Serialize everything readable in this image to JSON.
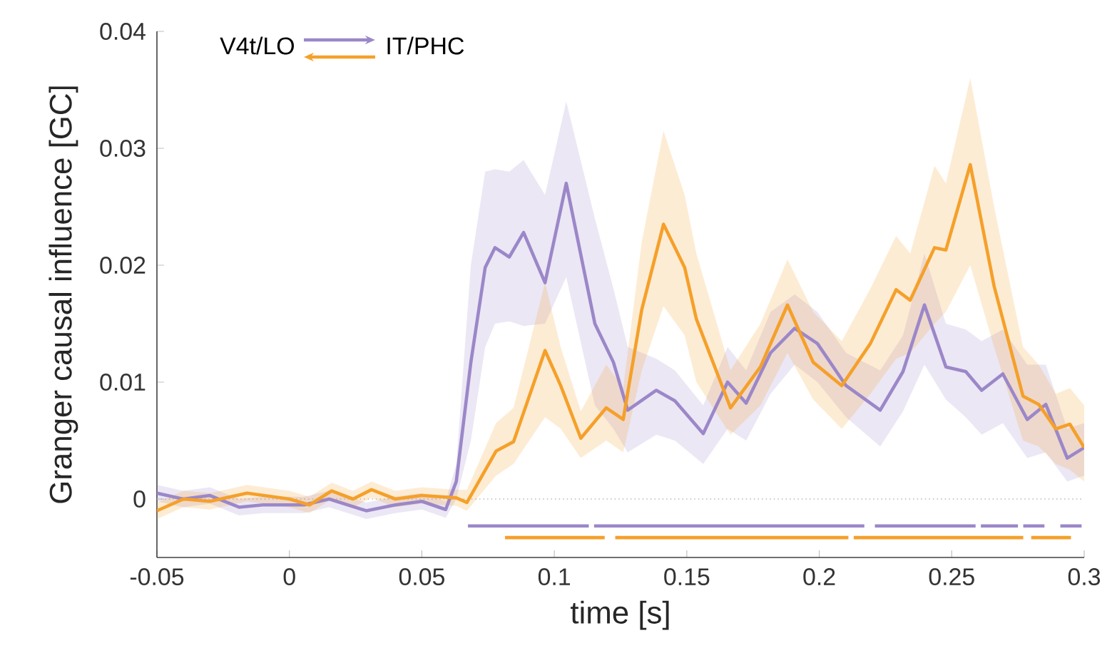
{
  "chart_data": {
    "type": "line",
    "xlabel": "time [s]",
    "ylabel": "Granger causal influence [GC]",
    "annotations": [
      "V4t/LO",
      "IT/PHC"
    ],
    "xlim": [
      -0.05,
      0.3
    ],
    "ylim": [
      -0.005,
      0.04
    ],
    "xticks": [
      -0.05,
      0,
      0.05,
      0.1,
      0.15,
      0.2,
      0.25,
      0.3
    ],
    "yticks": [
      0,
      0.01,
      0.02,
      0.03,
      0.04
    ],
    "ref_lines": [
      {
        "axis": "y",
        "value": 0,
        "color": "#bbbbbb",
        "line_style": "dotted"
      }
    ],
    "series": [
      {
        "color": "#9b87c8",
        "x": [
          -0.05,
          -0.04,
          -0.03,
          -0.019,
          -0.01,
          0.0055,
          0.015,
          0.029,
          0.04,
          0.05,
          0.059,
          0.063,
          0.0685,
          0.0739,
          0.0776,
          0.083,
          0.0884,
          0.0965,
          0.1045,
          0.1153,
          0.1223,
          0.1277,
          0.1385,
          0.1455,
          0.1562,
          0.1654,
          0.1724,
          0.1816,
          0.1907,
          0.1993,
          0.2101,
          0.223,
          0.2316,
          0.2397,
          0.2478,
          0.2553,
          0.2613,
          0.2693,
          0.2785,
          0.2855,
          0.2936,
          0.3
        ],
        "values": [
          0.0005,
          0.0,
          0.0003,
          -0.0007,
          -0.0005,
          -0.0005,
          0.0,
          -0.001,
          -0.0005,
          -0.0002,
          -0.0009,
          0.0015,
          0.0117,
          0.0198,
          0.0215,
          0.0207,
          0.0228,
          0.0185,
          0.027,
          0.015,
          0.0117,
          0.0076,
          0.0093,
          0.0084,
          0.0056,
          0.01,
          0.0082,
          0.0125,
          0.0146,
          0.0133,
          0.0097,
          0.0076,
          0.0109,
          0.0166,
          0.0113,
          0.0109,
          0.0093,
          0.0107,
          0.0068,
          0.0081,
          0.0035,
          0.0044
        ],
        "upper": [
          0.0012,
          0.0007,
          0.001,
          0.0,
          0.0002,
          0.0002,
          0.0007,
          -0.0003,
          0.0002,
          0.0005,
          -0.0002,
          0.003,
          0.02,
          0.028,
          0.0282,
          0.028,
          0.029,
          0.026,
          0.034,
          0.024,
          0.018,
          0.013,
          0.012,
          0.011,
          0.008,
          0.013,
          0.011,
          0.016,
          0.0175,
          0.016,
          0.0125,
          0.011,
          0.014,
          0.021,
          0.015,
          0.0145,
          0.0135,
          0.0145,
          0.0115,
          0.0115,
          0.006,
          0.0065
        ],
        "lower": [
          -0.0002,
          -0.0007,
          -0.0004,
          -0.0014,
          -0.0012,
          -0.0012,
          -0.0007,
          -0.0017,
          -0.0012,
          -0.0009,
          -0.0016,
          0.0,
          0.005,
          0.013,
          0.015,
          0.0152,
          0.0148,
          0.015,
          0.019,
          0.008,
          0.006,
          0.004,
          0.0055,
          0.005,
          0.003,
          0.006,
          0.005,
          0.009,
          0.0115,
          0.01,
          0.007,
          0.0045,
          0.0075,
          0.0115,
          0.0085,
          0.007,
          0.0055,
          0.0065,
          0.0035,
          0.004,
          0.0015,
          0.002
        ]
      },
      {
        "color": "#f5a02a",
        "x": [
          -0.05,
          -0.04,
          -0.03,
          -0.016,
          0.0,
          0.0076,
          0.016,
          0.024,
          0.031,
          0.04,
          0.05,
          0.063,
          0.067,
          0.078,
          0.0846,
          0.0965,
          0.1024,
          0.11,
          0.1196,
          0.126,
          0.133,
          0.1412,
          0.1492,
          0.1536,
          0.1665,
          0.1778,
          0.188,
          0.1977,
          0.2085,
          0.2193,
          0.229,
          0.2343,
          0.2435,
          0.2478,
          0.257,
          0.266,
          0.2769,
          0.2828,
          0.2893,
          0.2946,
          0.3
        ],
        "values": [
          -0.001,
          0.0,
          -0.0002,
          0.0005,
          0.0,
          -0.0005,
          0.0007,
          0.0,
          0.0008,
          0.0,
          0.0003,
          0.0001,
          -0.0003,
          0.0041,
          0.0049,
          0.0127,
          0.0097,
          0.0052,
          0.0078,
          0.0068,
          0.0162,
          0.0235,
          0.0198,
          0.0154,
          0.0078,
          0.0113,
          0.0166,
          0.0117,
          0.0097,
          0.0133,
          0.0179,
          0.017,
          0.0215,
          0.0213,
          0.0286,
          0.0182,
          0.0088,
          0.0081,
          0.006,
          0.0064,
          0.0044
        ],
        "upper": [
          -0.0003,
          0.0007,
          0.0005,
          0.0012,
          0.0007,
          0.0002,
          0.0014,
          0.0007,
          0.0015,
          0.0007,
          0.001,
          0.0008,
          0.0008,
          0.0065,
          0.0078,
          0.0185,
          0.013,
          0.0075,
          0.0115,
          0.0095,
          0.022,
          0.0315,
          0.026,
          0.021,
          0.011,
          0.015,
          0.0205,
          0.016,
          0.0135,
          0.018,
          0.0225,
          0.021,
          0.0285,
          0.027,
          0.036,
          0.025,
          0.013,
          0.0115,
          0.009,
          0.0095,
          0.008
        ],
        "lower": [
          -0.0017,
          -0.0007,
          -0.0009,
          -0.0002,
          -0.0007,
          -0.0012,
          0.0,
          -0.0007,
          0.0001,
          -0.0007,
          -0.0004,
          -0.0006,
          -0.001,
          0.002,
          0.003,
          0.007,
          0.006,
          0.0035,
          0.005,
          0.004,
          0.011,
          0.0165,
          0.014,
          0.01,
          0.0055,
          0.008,
          0.0125,
          0.0085,
          0.006,
          0.009,
          0.012,
          0.0125,
          0.015,
          0.016,
          0.02,
          0.013,
          0.005,
          0.0045,
          0.003,
          0.0025,
          0.0015
        ]
      },
      {
        "color": "#9b87c8",
        "x": [
          0.0674,
          0.113,
          null,
          0.115,
          0.217,
          null,
          0.221,
          0.259,
          null,
          0.261,
          0.275,
          null,
          0.277,
          0.285,
          null,
          0.291,
          0.299
        ],
        "values": [
          -0.0023,
          -0.0023,
          null,
          -0.0023,
          -0.0023,
          null,
          -0.0023,
          -0.0023,
          null,
          -0.0023,
          -0.0023,
          null,
          -0.0023,
          -0.0023,
          null,
          -0.0023,
          -0.0023
        ]
      },
      {
        "color": "#f5a02a",
        "x": [
          0.0814,
          0.119,
          null,
          0.123,
          0.211,
          null,
          0.213,
          0.277,
          null,
          0.28,
          0.295
        ],
        "values": [
          -0.0033,
          -0.0033,
          null,
          -0.0033,
          -0.0033,
          null,
          -0.0033,
          -0.0033,
          null,
          -0.0033,
          -0.0033
        ]
      }
    ]
  }
}
